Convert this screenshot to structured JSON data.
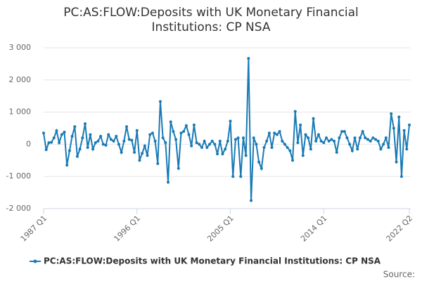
{
  "chart_data": {
    "type": "line",
    "title": "PC:AS:FLOW:Deposits with UK Monetary Financial Institutions: CP NSA",
    "source": "Source:",
    "categories": [
      "1987 Q1",
      null,
      null,
      null,
      null,
      null,
      null,
      null,
      null,
      null,
      null,
      null,
      null,
      null,
      null,
      null,
      null,
      null,
      null,
      null,
      null,
      null,
      null,
      null,
      null,
      null,
      null,
      null,
      null,
      null,
      null,
      null,
      null,
      null,
      null,
      null,
      "1996 Q1",
      null,
      null,
      null,
      null,
      null,
      null,
      null,
      null,
      null,
      null,
      null,
      null,
      null,
      null,
      null,
      null,
      null,
      null,
      null,
      null,
      null,
      null,
      null,
      null,
      null,
      null,
      null,
      null,
      null,
      null,
      null,
      null,
      null,
      null,
      null,
      "2005 Q1",
      null,
      null,
      null,
      null,
      null,
      null,
      null,
      null,
      null,
      null,
      null,
      null,
      null,
      null,
      null,
      null,
      null,
      null,
      null,
      null,
      null,
      null,
      null,
      null,
      null,
      null,
      null,
      null,
      null,
      null,
      null,
      null,
      null,
      null,
      null,
      "2014 Q1",
      null,
      null,
      null,
      null,
      null,
      null,
      null,
      null,
      null,
      null,
      null,
      null,
      null,
      null,
      null,
      null,
      null,
      null,
      null,
      null,
      null,
      null,
      null,
      null,
      null,
      null,
      null,
      null,
      null,
      null,
      null,
      null,
      "2022 Q2"
    ],
    "series": [
      {
        "name": "PC:AS:FLOW:Deposits with UK Monetary Financial Institutions: CP NSA",
        "color": "#1a7ab5",
        "values": [
          350,
          -170,
          50,
          60,
          200,
          420,
          50,
          300,
          380,
          -650,
          -200,
          250,
          550,
          -380,
          -150,
          200,
          640,
          -100,
          300,
          -150,
          50,
          100,
          250,
          0,
          -30,
          300,
          150,
          100,
          250,
          0,
          -250,
          100,
          550,
          150,
          130,
          -250,
          430,
          -500,
          -280,
          -50,
          -350,
          300,
          350,
          100,
          -600,
          1330,
          200,
          50,
          -1180,
          700,
          400,
          150,
          -750,
          350,
          400,
          580,
          300,
          -50,
          600,
          50,
          0,
          -100,
          100,
          -100,
          0,
          100,
          0,
          -300,
          100,
          -300,
          -150,
          100,
          720,
          -1000,
          150,
          200,
          -1000,
          200,
          -350,
          2670,
          -1750,
          200,
          0,
          -550,
          -750,
          -100,
          100,
          350,
          -100,
          350,
          300,
          400,
          100,
          0,
          -100,
          -200,
          -500,
          1020,
          50,
          600,
          -350,
          300,
          200,
          -150,
          800,
          100,
          300,
          100,
          50,
          200,
          100,
          150,
          100,
          -250,
          200,
          400,
          400,
          200,
          0,
          -200,
          200,
          -150,
          200,
          400,
          200,
          150,
          100,
          200,
          150,
          100,
          -150,
          0,
          200,
          -100,
          950,
          500,
          -550,
          850,
          -1000,
          430,
          -150,
          600
        ]
      }
    ],
    "ylim": [
      -2000,
      3000
    ],
    "yticks": [
      {
        "value": -2000,
        "label": "-2 000"
      },
      {
        "value": -1000,
        "label": "-1 000"
      },
      0,
      {
        "value": 1000,
        "label": "1 000"
      },
      {
        "value": 2000,
        "label": "2 000"
      },
      {
        "value": 3000,
        "label": "3 000"
      }
    ],
    "grid": true
  }
}
